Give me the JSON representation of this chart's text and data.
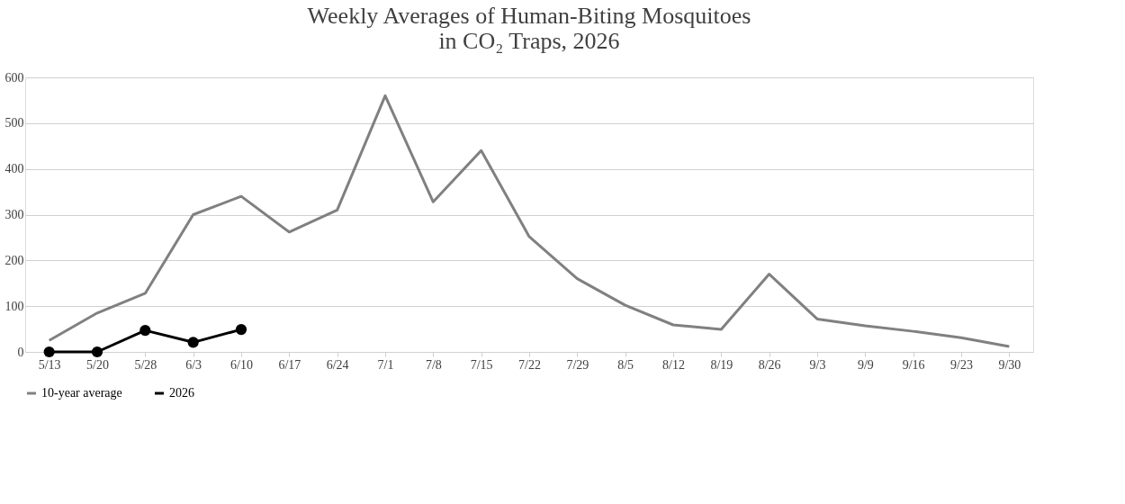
{
  "chart_data": {
    "type": "line",
    "title": "Weekly Averages of Human-Biting Mosquitoes\nin CO₂ Traps, 2026",
    "categories": [
      "5/13",
      "5/20",
      "5/28",
      "6/3",
      "6/10",
      "6/17",
      "6/24",
      "7/1",
      "7/8",
      "7/15",
      "7/22",
      "7/29",
      "8/5",
      "8/12",
      "8/19",
      "8/26",
      "9/3",
      "9/9",
      "9/16",
      "9/23",
      "9/30"
    ],
    "series": [
      {
        "name": "10-year average",
        "color": "#808080",
        "marker": "none",
        "values": [
          25,
          85,
          128,
          300,
          340,
          262,
          310,
          560,
          328,
          440,
          252,
          160,
          102,
          59,
          49,
          170,
          72,
          57,
          45,
          31,
          12
        ]
      },
      {
        "name": "2026",
        "color": "#000000",
        "marker": "circle",
        "values": [
          0,
          0,
          47,
          21,
          49,
          null,
          null,
          null,
          null,
          null,
          null,
          null,
          null,
          null,
          null,
          null,
          null,
          null,
          null,
          null,
          null
        ]
      }
    ],
    "ylim": [
      0,
      600
    ],
    "yticks": [
      0,
      100,
      200,
      300,
      400,
      500,
      600
    ],
    "grid": "y",
    "legend": "bottom",
    "line_style": "solid"
  }
}
